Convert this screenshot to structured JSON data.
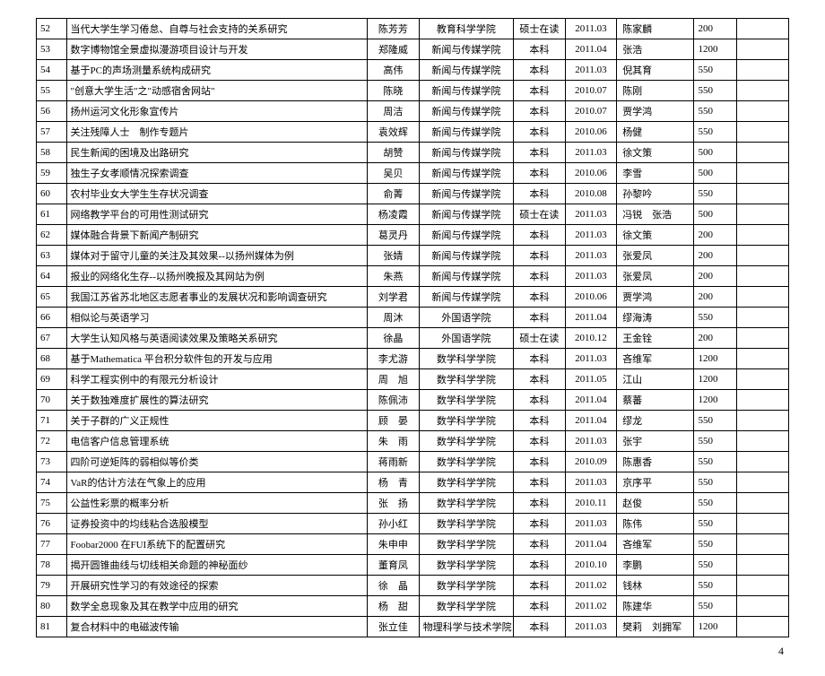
{
  "page_number": "4",
  "columns": {
    "widths_pct": [
      3.5,
      35,
      6,
      11,
      6,
      6,
      9,
      5,
      6
    ],
    "align": [
      "left",
      "left",
      "center",
      "center",
      "center",
      "center",
      "left",
      "left",
      "left"
    ]
  },
  "rows": [
    {
      "idx": "52",
      "title": "当代大学生学习倦怠、自尊与社会支持的关系研究",
      "name": "陈芳芳",
      "dept": "教育科学学院",
      "level": "硕士在读",
      "date": "2011.03",
      "advisor": "陈家麟",
      "amt": "200"
    },
    {
      "idx": "53",
      "title": "数字博物馆全景虚拟漫游项目设计与开发",
      "name": "郑隆威",
      "dept": "新闻与传媒学院",
      "level": "本科",
      "date": "2011.04",
      "advisor": "张浩",
      "amt": "1200"
    },
    {
      "idx": "54",
      "title": "基于PC的声场测量系统构成研究",
      "name": "高伟",
      "dept": "新闻与传媒学院",
      "level": "本科",
      "date": "2011.03",
      "advisor": "倪其育",
      "amt": "550"
    },
    {
      "idx": "55",
      "title": "\"创意大学生活\"之\"动感宿舍网站\"",
      "name": "陈晓",
      "dept": "新闻与传媒学院",
      "level": "本科",
      "date": "2010.07",
      "advisor": "陈刚",
      "amt": "550"
    },
    {
      "idx": "56",
      "title": "扬州运河文化形象宣传片",
      "name": "周洁",
      "dept": "新闻与传媒学院",
      "level": "本科",
      "date": "2010.07",
      "advisor": "贾学鸿",
      "amt": "550"
    },
    {
      "idx": "57",
      "title": "关注残障人士　制作专题片",
      "name": "袁效辉",
      "dept": "新闻与传媒学院",
      "level": "本科",
      "date": "2010.06",
      "advisor": "杨健",
      "amt": "550"
    },
    {
      "idx": "58",
      "title": "民生新闻的困境及出路研究",
      "name": "胡赞",
      "dept": "新闻与传媒学院",
      "level": "本科",
      "date": "2011.03",
      "advisor": "徐文策",
      "amt": "500"
    },
    {
      "idx": "59",
      "title": "独生子女孝顺情况探索调查",
      "name": "吴贝",
      "dept": "新闻与传媒学院",
      "level": "本科",
      "date": "2010.06",
      "advisor": "李雪",
      "amt": "500"
    },
    {
      "idx": "60",
      "title": "农村毕业女大学生生存状况调查",
      "name": "俞菁",
      "dept": "新闻与传媒学院",
      "level": "本科",
      "date": "2010.08",
      "advisor": "孙黎吟",
      "amt": "550"
    },
    {
      "idx": "61",
      "title": "网络教学平台的可用性测试研究",
      "name": "杨凌霞",
      "dept": "新闻与传媒学院",
      "level": "硕士在读",
      "date": "2011.03",
      "advisor": "冯锐　张浩",
      "amt": "500"
    },
    {
      "idx": "62",
      "title": "媒体融合背景下新闻产制研究",
      "name": "葛灵丹",
      "dept": "新闻与传媒学院",
      "level": "本科",
      "date": "2011.03",
      "advisor": "徐文策",
      "amt": "200"
    },
    {
      "idx": "63",
      "title": "媒体对于留守儿童的关注及其效果--以扬州媒体为例",
      "name": "张婧",
      "dept": "新闻与传媒学院",
      "level": "本科",
      "date": "2011.03",
      "advisor": "张爱凤",
      "amt": "200"
    },
    {
      "idx": "64",
      "title": "报业的网络化生存--以扬州晚报及其网站为例",
      "name": "朱燕",
      "dept": "新闻与传媒学院",
      "level": "本科",
      "date": "2011.03",
      "advisor": "张爱凤",
      "amt": "200"
    },
    {
      "idx": "65",
      "title": "我国江苏省苏北地区志愿者事业的发展状况和影响调查研究",
      "name": "刘学君",
      "dept": "新闻与传媒学院",
      "level": "本科",
      "date": "2010.06",
      "advisor": "贾学鸿",
      "amt": "200"
    },
    {
      "idx": "66",
      "title": "相似论与英语学习",
      "name": "周沐",
      "dept": "外国语学院",
      "level": "本科",
      "date": "2011.04",
      "advisor": "缪海涛",
      "amt": "550"
    },
    {
      "idx": "67",
      "title": "大学生认知风格与英语阅读效果及策略关系研究",
      "name": "徐晶",
      "dept": "外国语学院",
      "level": "硕士在读",
      "date": "2010.12",
      "advisor": "王金铨",
      "amt": "200"
    },
    {
      "idx": "68",
      "title": "基于Mathematica 平台积分软件包的开发与应用",
      "name": "李尤游",
      "dept": "数学科学学院",
      "level": "本科",
      "date": "2011.03",
      "advisor": "吝维军",
      "amt": "1200"
    },
    {
      "idx": "69",
      "title": "科学工程实例中的有限元分析设计",
      "name": "周　旭",
      "dept": "数学科学学院",
      "level": "本科",
      "date": "2011.05",
      "advisor": "江山",
      "amt": "1200"
    },
    {
      "idx": "70",
      "title": "关于数独难度扩展性的算法研究",
      "name": "陈佩沛",
      "dept": "数学科学学院",
      "level": "本科",
      "date": "2011.04",
      "advisor": "蔡蕃",
      "amt": "1200"
    },
    {
      "idx": "71",
      "title": "关于子群的广义正规性",
      "name": "顾　晏",
      "dept": "数学科学学院",
      "level": "本科",
      "date": "2011.04",
      "advisor": "缪龙",
      "amt": "550"
    },
    {
      "idx": "72",
      "title": "电信客户信息管理系统",
      "name": "朱　雨",
      "dept": "数学科学学院",
      "level": "本科",
      "date": "2011.03",
      "advisor": "张宇",
      "amt": "550"
    },
    {
      "idx": "73",
      "title": "四阶可逆矩阵的弱相似等价类",
      "name": "蒋雨新",
      "dept": "数学科学学院",
      "level": "本科",
      "date": "2010.09",
      "advisor": "陈惠香",
      "amt": "550"
    },
    {
      "idx": "74",
      "title": "VaR的估计方法在气象上的应用",
      "name": "杨　青",
      "dept": "数学科学学院",
      "level": "本科",
      "date": "2011.03",
      "advisor": "京序平",
      "amt": "550"
    },
    {
      "idx": "75",
      "title": "公益性彩票的概率分析",
      "name": "张　扬",
      "dept": "数学科学学院",
      "level": "本科",
      "date": "2010.11",
      "advisor": "赵俊",
      "amt": "550"
    },
    {
      "idx": "76",
      "title": "证券投资中的均线粘合选股模型",
      "name": "孙小红",
      "dept": "数学科学学院",
      "level": "本科",
      "date": "2011.03",
      "advisor": "陈伟",
      "amt": "550"
    },
    {
      "idx": "77",
      "title": "Foobar2000 在FUI系统下的配置研究",
      "name": "朱申申",
      "dept": "数学科学学院",
      "level": "本科",
      "date": "2011.04",
      "advisor": "吝维军",
      "amt": "550"
    },
    {
      "idx": "78",
      "title": "揭开圆锥曲线与切线相关命题的神秘面纱",
      "name": "董育凤",
      "dept": "数学科学学院",
      "level": "本科",
      "date": "2010.10",
      "advisor": "李鹏",
      "amt": "550"
    },
    {
      "idx": "79",
      "title": "开展研究性学习的有效途径的探索",
      "name": "徐　晶",
      "dept": "数学科学学院",
      "level": "本科",
      "date": "2011.02",
      "advisor": "钱林",
      "amt": "550"
    },
    {
      "idx": "80",
      "title": "数学全息现象及其在教学中应用的研究",
      "name": "杨　甜",
      "dept": "数学科学学院",
      "level": "本科",
      "date": "2011.02",
      "advisor": "陈建华",
      "amt": "550"
    },
    {
      "idx": "81",
      "title": "复合材料中的电磁波传输",
      "name": "张立佳",
      "dept": "物理科学与技术学院",
      "level": "本科",
      "date": "2011.03",
      "advisor": "樊莉　刘拥军",
      "amt": "1200"
    }
  ]
}
